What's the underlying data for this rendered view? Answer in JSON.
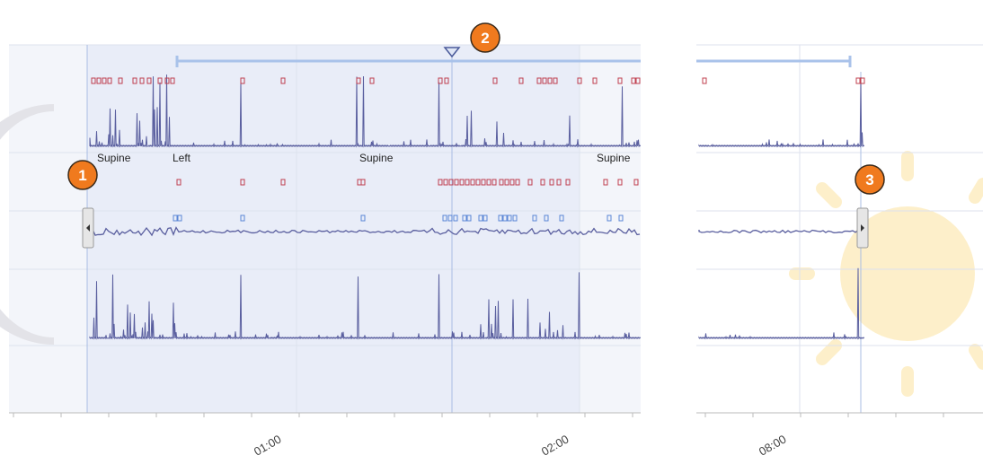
{
  "callouts": [
    "1",
    "2",
    "3"
  ],
  "position_labels": [
    "Supine",
    "Left",
    "Supine",
    "Supine"
  ],
  "time_axis": {
    "labels": [
      "01:00",
      "02:00",
      "08:00"
    ]
  }
}
